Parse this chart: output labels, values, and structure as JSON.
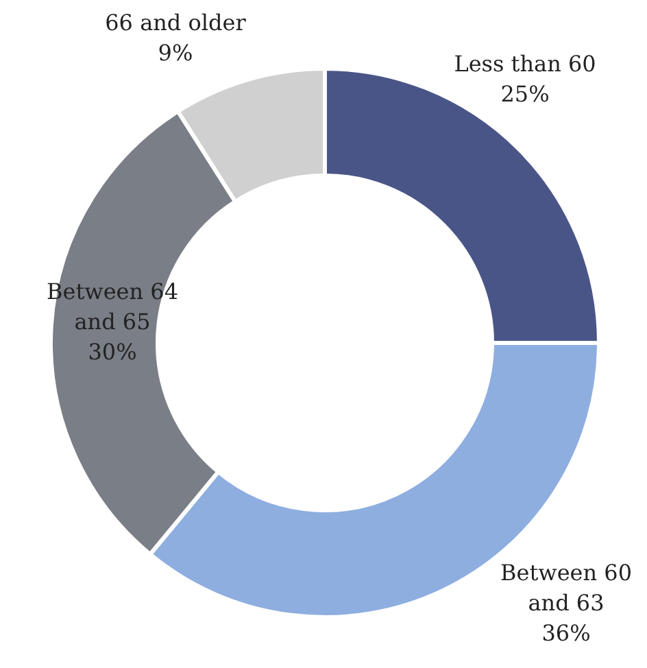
{
  "chart_data": {
    "type": "donut",
    "categories": [
      "Less than 60",
      "Between 60 and 63",
      "Between 64 and 65",
      "66 and older"
    ],
    "values": [
      25,
      36,
      30,
      9
    ],
    "value_labels": [
      "25%",
      "36%",
      "30%",
      "9%"
    ],
    "colors": [
      "#4a5587",
      "#8eaee0",
      "#7a7e86",
      "#d0d0d0"
    ],
    "legend": false
  }
}
